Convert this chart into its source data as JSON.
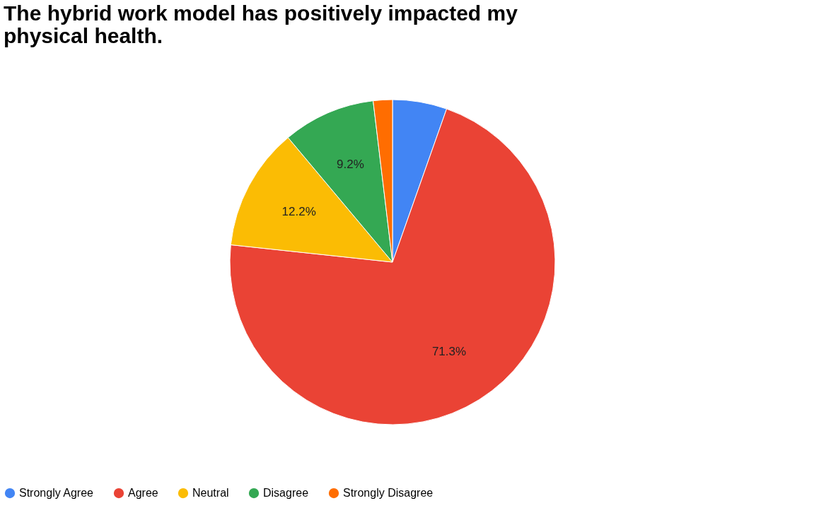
{
  "chart_data": {
    "type": "pie",
    "title": "The hybrid work model has positively impacted my physical health.",
    "categories": [
      "Strongly Agree",
      "Agree",
      "Neutral",
      "Disagree",
      "Strongly Disagree"
    ],
    "values": [
      5.4,
      71.3,
      12.2,
      9.2,
      1.9
    ],
    "colors": [
      "#4285f4",
      "#ea4335",
      "#fbbc04",
      "#34a853",
      "#ff6d01"
    ],
    "value_labels": [
      null,
      "71.3%",
      "12.2%",
      "9.2%",
      null
    ],
    "legend": "bottom"
  }
}
